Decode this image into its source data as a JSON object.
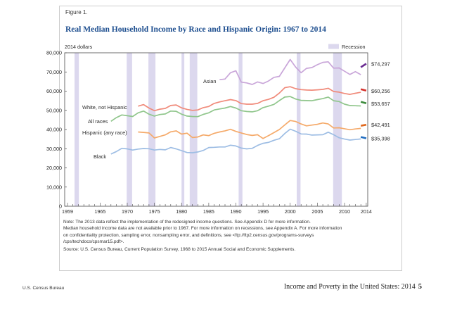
{
  "figure": {
    "label": "Figure 1."
  },
  "chart_data": {
    "type": "line",
    "title": "Real Median Household Income by Race and Hispanic Origin: 1967 to 2014",
    "xlabel": "",
    "ylabel": "2014 dollars",
    "xlim": [
      1959,
      2014
    ],
    "ylim": [
      0,
      80000
    ],
    "grid": false,
    "x_ticks": [
      1959,
      1965,
      1970,
      1975,
      1980,
      1985,
      1990,
      1995,
      2000,
      2005,
      2010,
      2014
    ],
    "x_tick_labels": [
      "1959",
      "1965",
      "1970",
      "1975",
      "1980",
      "1985",
      "1990",
      "1995",
      "2000",
      "2005",
      "2010",
      "2014"
    ],
    "y_ticks": [
      80000,
      70000,
      60000,
      50000,
      40000,
      30000,
      20000,
      10000,
      0
    ],
    "y_tick_labels": [
      "80,000",
      "70,000",
      "60,000",
      "50,000",
      "40,000",
      "30,000",
      "20,000",
      "10,000",
      "0"
    ],
    "legend": {
      "label": "Recession",
      "placement": "top-right",
      "color": "#dcd8ee"
    },
    "recessions": [
      [
        1960.3,
        1961.1
      ],
      [
        1969.9,
        1970.9
      ],
      [
        1973.9,
        1975.2
      ],
      [
        1980.0,
        1980.5
      ],
      [
        1981.5,
        1982.9
      ],
      [
        1990.5,
        1991.2
      ],
      [
        2001.2,
        2001.9
      ],
      [
        2007.9,
        2009.5
      ]
    ],
    "series": [
      {
        "name": "Asian",
        "color": "#c9a6d9",
        "redesign_color": "#6a2c91",
        "x": [
          1987,
          1988,
          1989,
          1990,
          1991,
          1992,
          1993,
          1994,
          1995,
          1996,
          1997,
          1998,
          1999,
          2000,
          2001,
          2002,
          2003,
          2004,
          2005,
          2006,
          2007,
          2008,
          2009,
          2010,
          2011,
          2012,
          2013
        ],
        "values": [
          66000,
          66300,
          69600,
          70600,
          64700,
          64300,
          63500,
          64800,
          64000,
          65300,
          67200,
          67700,
          72100,
          76500,
          72500,
          69600,
          71900,
          72300,
          73800,
          75000,
          75300,
          72000,
          72100,
          70400,
          68700,
          70200,
          68600
        ],
        "redesign": {
          "x": [
            2013,
            2014
          ],
          "values": [
            72472,
            74297
          ]
        },
        "end_label": "$74,297"
      },
      {
        "name": "White, not Hispanic",
        "color": "#f08a7a",
        "redesign_color": "#d4302a",
        "x": [
          1972,
          1973,
          1974,
          1975,
          1976,
          1977,
          1978,
          1979,
          1980,
          1981,
          1982,
          1983,
          1984,
          1985,
          1986,
          1987,
          1988,
          1989,
          1990,
          1991,
          1992,
          1993,
          1994,
          1995,
          1996,
          1997,
          1998,
          1999,
          2000,
          2001,
          2002,
          2003,
          2004,
          2005,
          2006,
          2007,
          2008,
          2009,
          2010,
          2011,
          2012,
          2013
        ],
        "values": [
          52200,
          53000,
          51200,
          49800,
          50600,
          51000,
          52500,
          52800,
          51300,
          50500,
          50000,
          50200,
          51400,
          52000,
          53600,
          54400,
          55000,
          55600,
          55100,
          53500,
          53200,
          53200,
          53600,
          55000,
          55700,
          56800,
          59000,
          61800,
          62300,
          61300,
          60800,
          60600,
          60500,
          60700,
          60900,
          61500,
          59800,
          59500,
          58800,
          58300,
          58900,
          59400
        ],
        "redesign": {
          "x": [
            2013,
            2014
          ],
          "values": [
            61017,
            60256
          ]
        },
        "end_label": "$60,256"
      },
      {
        "name": "All races",
        "color": "#90c68c",
        "redesign_color": "#3b8a3b",
        "x": [
          1967,
          1968,
          1969,
          1970,
          1971,
          1972,
          1973,
          1974,
          1975,
          1976,
          1977,
          1978,
          1979,
          1980,
          1981,
          1982,
          1983,
          1984,
          1985,
          1986,
          1987,
          1988,
          1989,
          1990,
          1991,
          1992,
          1993,
          1994,
          1995,
          1996,
          1997,
          1998,
          1999,
          2000,
          2001,
          2002,
          2003,
          2004,
          2005,
          2006,
          2007,
          2008,
          2009,
          2010,
          2011,
          2012,
          2013
        ],
        "values": [
          44300,
          46200,
          47600,
          47200,
          46800,
          48700,
          49600,
          48000,
          47000,
          47800,
          48100,
          49600,
          49500,
          48000,
          47000,
          46800,
          46700,
          47900,
          48700,
          50200,
          50700,
          51200,
          52000,
          51200,
          49800,
          49400,
          49200,
          49800,
          51400,
          52200,
          53100,
          55100,
          56900,
          57200,
          55900,
          55200,
          55100,
          55000,
          55600,
          56100,
          56900,
          55000,
          54600,
          53200,
          52500,
          52400,
          52300
        ],
        "redesign": {
          "x": [
            2013,
            2014
          ],
          "values": [
            54462,
            53657
          ]
        },
        "end_label": "$53,657"
      },
      {
        "name": "Hispanic (any race)",
        "color": "#f5aa6a",
        "redesign_color": "#e0681c",
        "x": [
          1972,
          1973,
          1974,
          1975,
          1976,
          1977,
          1978,
          1979,
          1980,
          1981,
          1982,
          1983,
          1984,
          1985,
          1986,
          1987,
          1988,
          1989,
          1990,
          1991,
          1992,
          1993,
          1994,
          1995,
          1996,
          1997,
          1998,
          1999,
          2000,
          2001,
          2002,
          2003,
          2004,
          2005,
          2006,
          2007,
          2008,
          2009,
          2010,
          2011,
          2012,
          2013
        ],
        "values": [
          38700,
          38500,
          38200,
          35600,
          36400,
          37200,
          38800,
          39300,
          37600,
          38100,
          35800,
          36100,
          37200,
          36800,
          38000,
          38700,
          39300,
          40100,
          39000,
          38200,
          37400,
          36900,
          37300,
          35300,
          36800,
          38400,
          40000,
          42400,
          44700,
          44200,
          42900,
          41900,
          42300,
          42700,
          43400,
          42900,
          40800,
          40900,
          40400,
          39900,
          40300,
          40600
        ],
        "redesign": {
          "x": [
            2013,
            2014
          ],
          "values": [
            41963,
            42491
          ]
        },
        "end_label": "$42,491"
      },
      {
        "name": "Black",
        "color": "#9dbde4",
        "redesign_color": "#1f6cc0",
        "x": [
          1967,
          1968,
          1969,
          1970,
          1971,
          1972,
          1973,
          1974,
          1975,
          1976,
          1977,
          1978,
          1979,
          1980,
          1981,
          1982,
          1983,
          1984,
          1985,
          1986,
          1987,
          1988,
          1989,
          1990,
          1991,
          1992,
          1993,
          1994,
          1995,
          1996,
          1997,
          1998,
          1999,
          2000,
          2001,
          2002,
          2003,
          2004,
          2005,
          2006,
          2007,
          2008,
          2009,
          2010,
          2011,
          2012,
          2013
        ],
        "values": [
          27200,
          28500,
          30200,
          29900,
          29300,
          29800,
          30100,
          30000,
          29300,
          29600,
          29400,
          30600,
          29900,
          29000,
          28000,
          27900,
          28300,
          29100,
          30600,
          30700,
          30900,
          30900,
          31800,
          31400,
          30300,
          29900,
          30200,
          31700,
          32800,
          33300,
          34400,
          35200,
          37900,
          40200,
          39100,
          37700,
          37600,
          37100,
          37200,
          37300,
          38600,
          37300,
          35700,
          35000,
          34500,
          34800,
          35100
        ],
        "redesign": {
          "x": [
            2013,
            2014
          ],
          "values": [
            36100,
            35398
          ]
        },
        "end_label": "$35,398"
      }
    ]
  },
  "notes": {
    "lines": [
      "Note: The 2013 data reflect the implementation of the redesigned income questions. See Appendix D for more information.",
      "Median household income data are not available prior to 1967. For more information on recessions, see Appendix A. For more information",
      "on confidentiality protection, sampling error, nonsampling error, and definitions, see <ftp://ftp2.census.gov/programs-surveys",
      "/cps/techdocs/cpsmar15.pdf>."
    ],
    "source": "Source: U.S. Census Bureau, Current Population Survey, 1968 to 2015 Annual Social and Economic Supplements."
  },
  "footer": {
    "agency": "U.S. Census Bureau",
    "title": "Income and Poverty in the United States: 2014",
    "page_number": "5"
  }
}
